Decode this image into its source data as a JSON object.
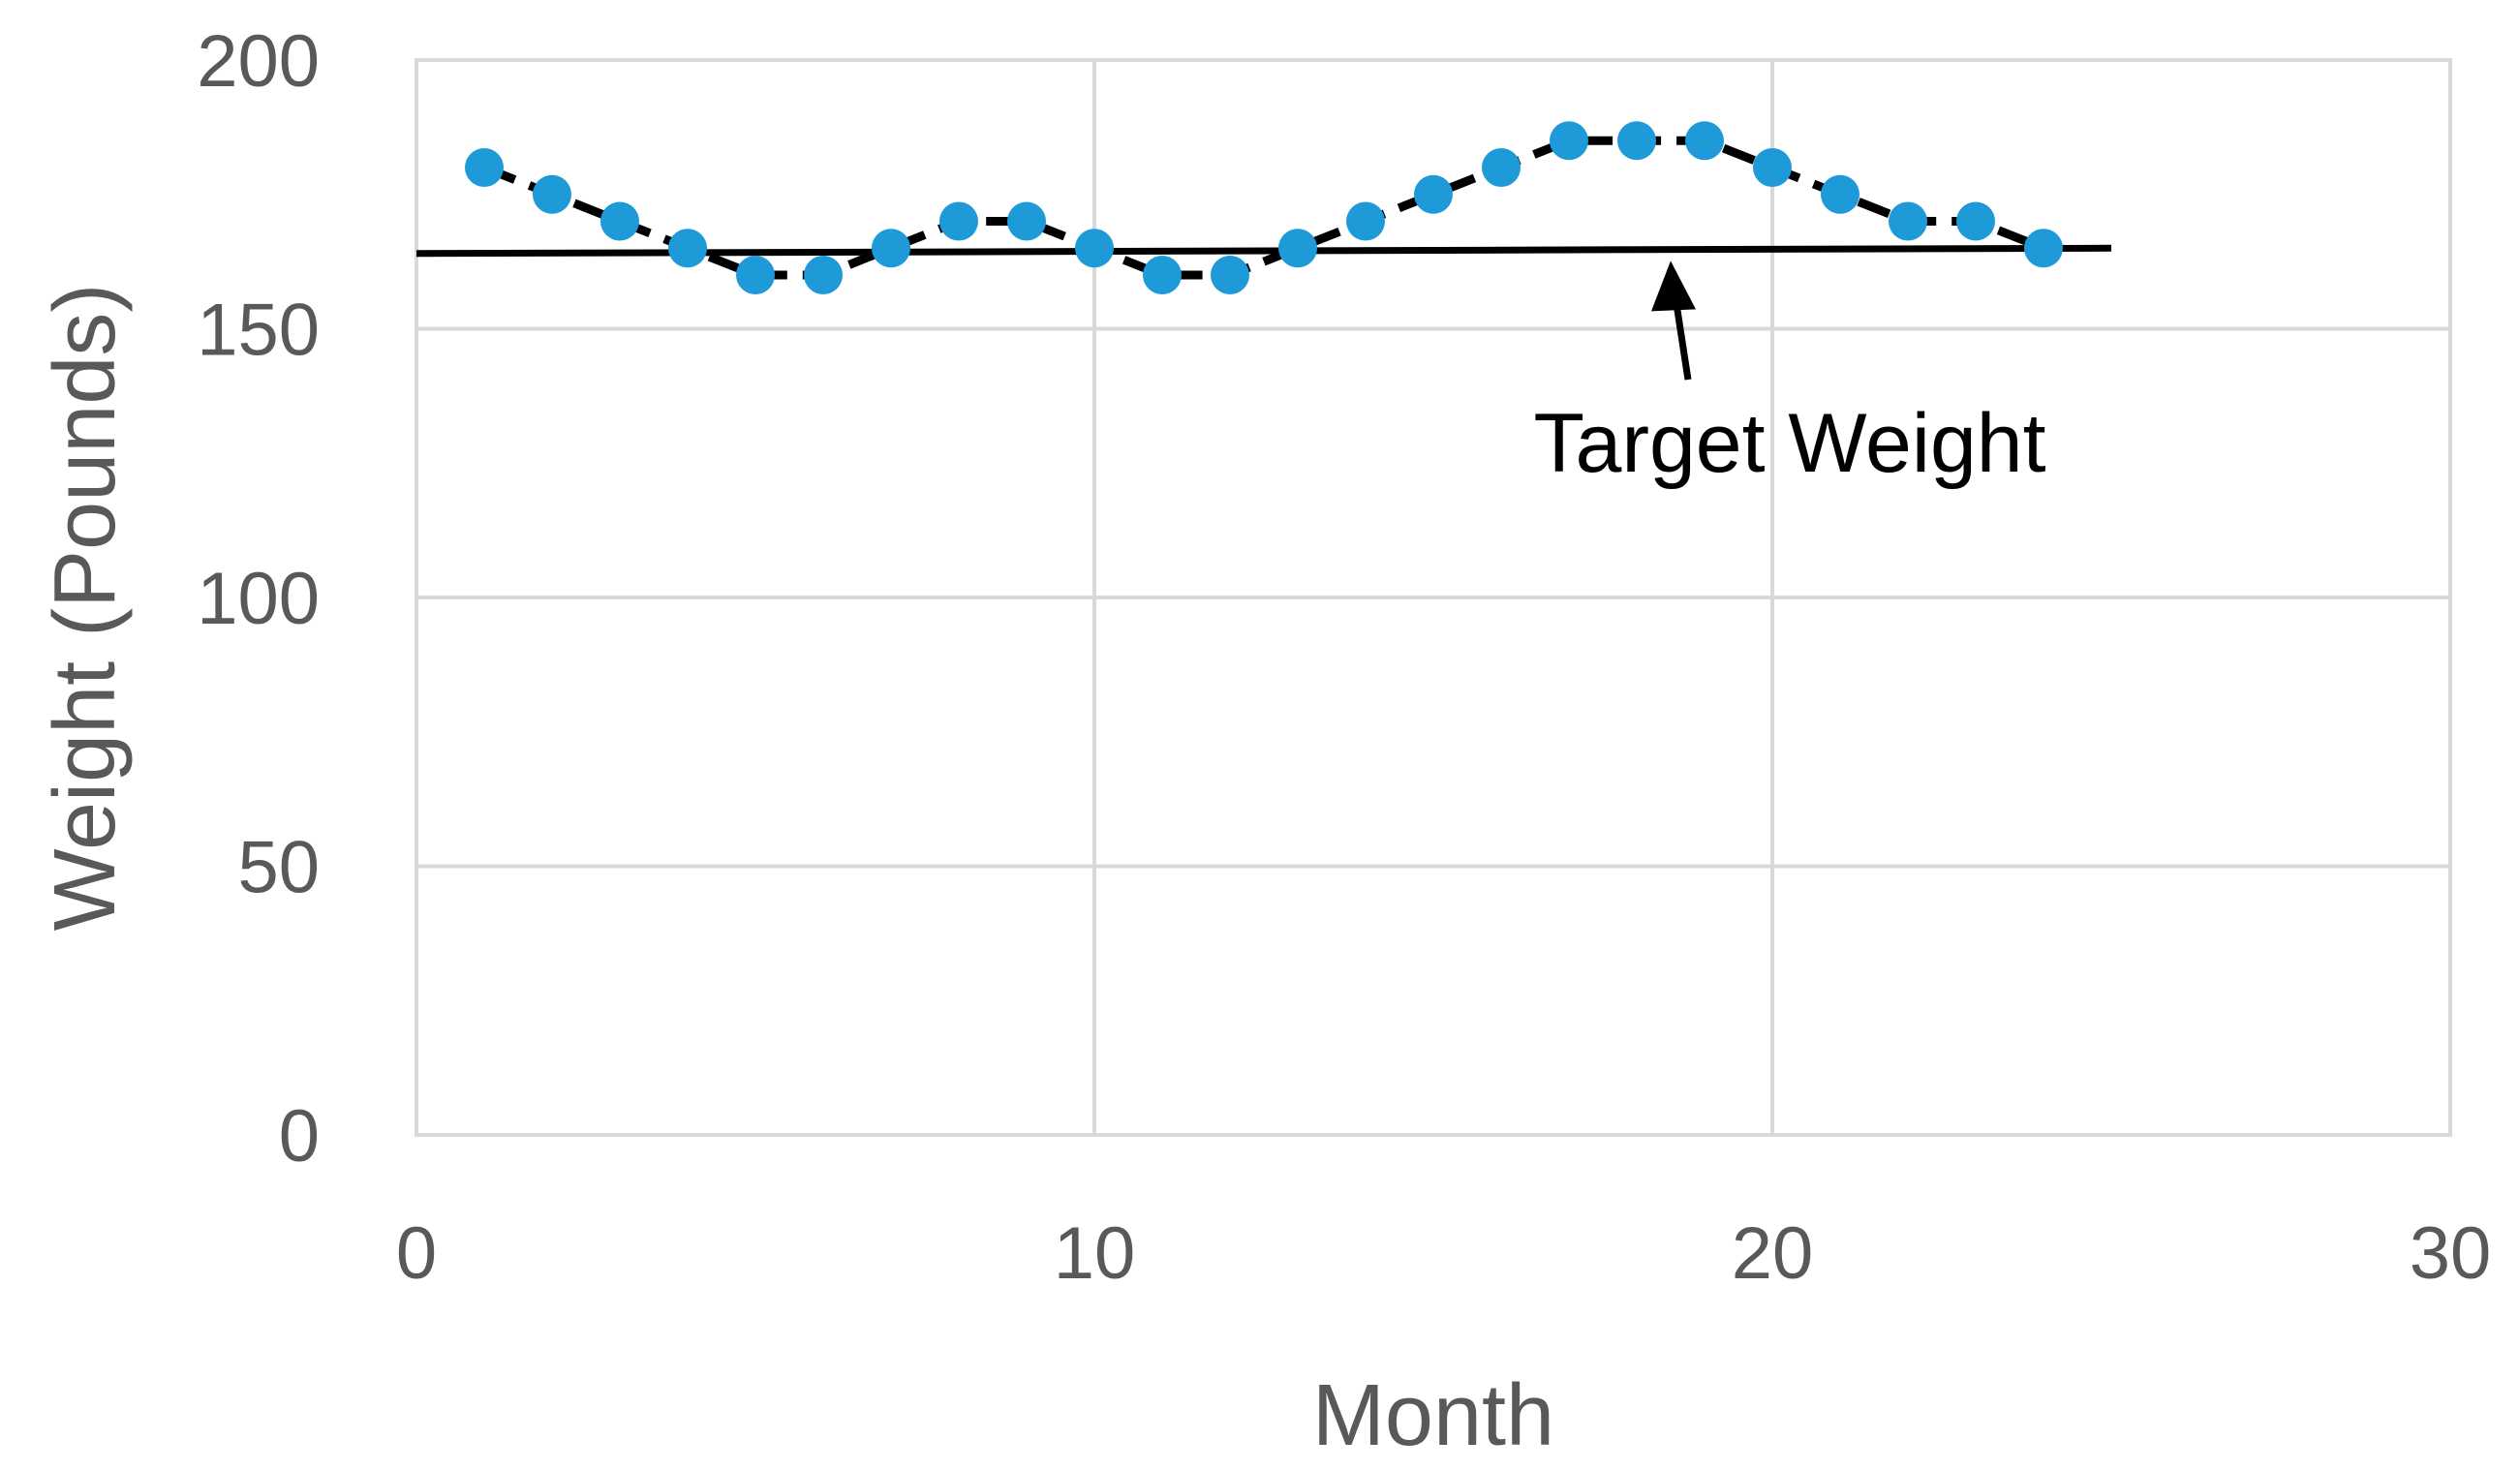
{
  "chart_data": {
    "type": "line",
    "title": "",
    "xlabel": "Month",
    "ylabel": "Weight (Pounds)",
    "xlim": [
      0,
      30
    ],
    "ylim": [
      0,
      200
    ],
    "x_ticks": [
      0,
      10,
      20,
      30
    ],
    "y_ticks": [
      0,
      50,
      100,
      150,
      200
    ],
    "grid": true,
    "legend": "none",
    "series": [
      {
        "x": [
          1,
          2,
          3,
          4,
          5,
          6,
          7,
          8,
          9,
          10,
          11,
          12,
          13,
          14,
          15,
          16,
          17,
          18,
          19,
          20,
          21,
          22,
          23,
          24
        ],
        "y": [
          180,
          175,
          170,
          165,
          160,
          160,
          165,
          170,
          170,
          165,
          160,
          160,
          165,
          170,
          175,
          180,
          185,
          185,
          185,
          180,
          175,
          170,
          170,
          165
        ],
        "marker_color": "#1f9ad8",
        "line_color": "#000000"
      }
    ],
    "reference_line": {
      "x": [
        0,
        25
      ],
      "y": [
        164,
        165
      ],
      "color": "#000000"
    },
    "annotations": [
      {
        "text": "Target Weight",
        "arrow_to": {
          "x": 18.5,
          "y": 164.8
        }
      }
    ]
  }
}
